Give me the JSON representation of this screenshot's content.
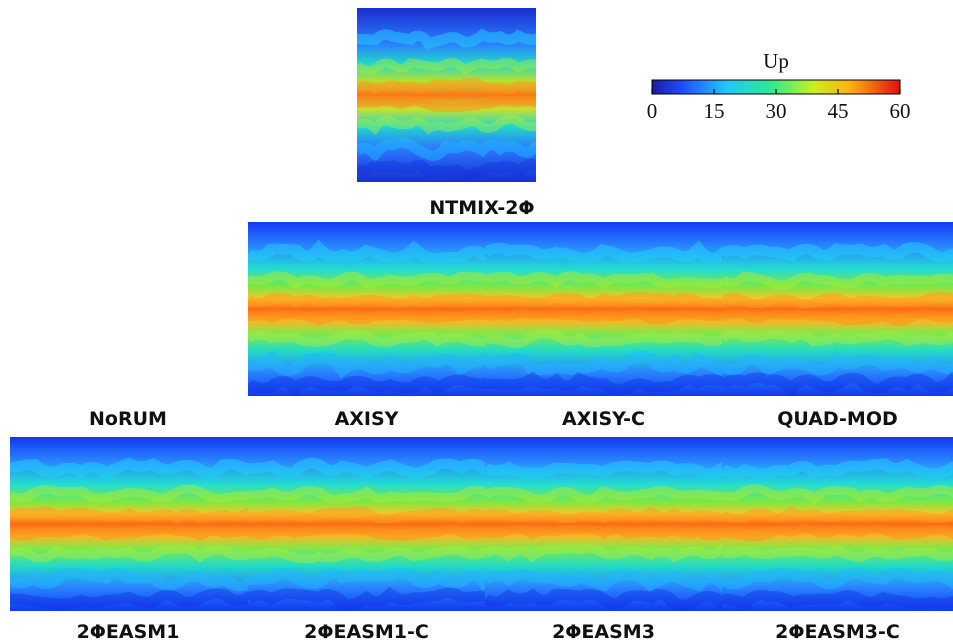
{
  "reference": {
    "label": "NTMIX-2Φ"
  },
  "colorbar": {
    "title": "Up",
    "lim": [
      0,
      60
    ],
    "ticks": [
      0,
      15,
      30,
      45,
      60
    ]
  },
  "rows": [
    {
      "labels": [
        "NoRUM",
        "AXISY",
        "AXISY-C",
        "QUAD-MOD"
      ]
    },
    {
      "labels": [
        "2ΦEASM1",
        "2ΦEASM1-C",
        "2ΦEASM3",
        "2ΦEASM3-C"
      ]
    }
  ]
}
